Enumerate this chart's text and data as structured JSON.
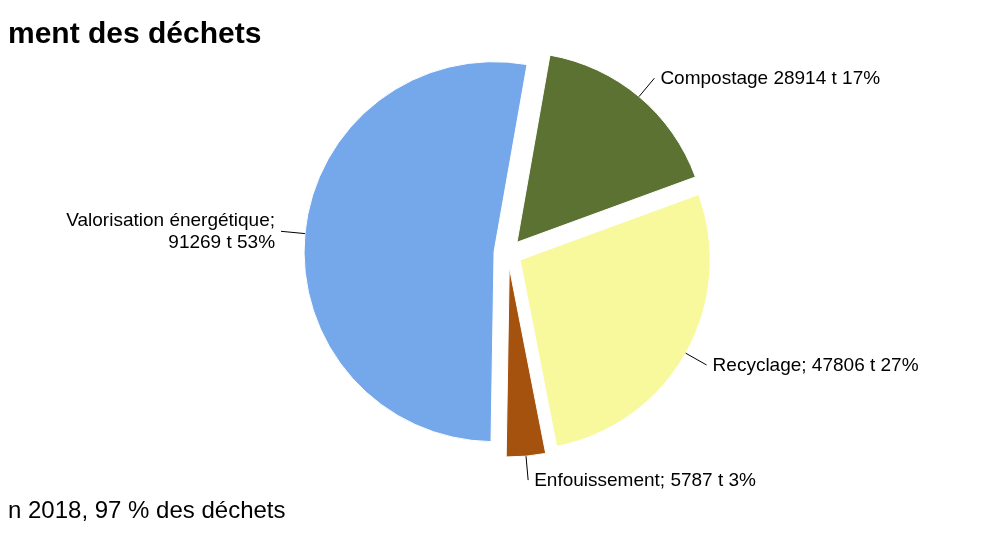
{
  "chart_data": {
    "type": "pie",
    "title": "ment des déchets",
    "annotations": [
      "n 2018, 97 % des déchets"
    ],
    "categories": [
      "Compostage",
      "Recyclage",
      "Enfouissement",
      "Valorisation énergétique"
    ],
    "values": [
      28914,
      47806,
      5787,
      91269
    ],
    "value_labels": [
      " 28914 t 17%",
      "; 47806 t 27%",
      "; 5787 t 3%",
      "; 91269 t 53%"
    ],
    "colors": [
      "#5b7232",
      "#f8f89c",
      "#a6520f",
      "#74a8ea"
    ]
  }
}
